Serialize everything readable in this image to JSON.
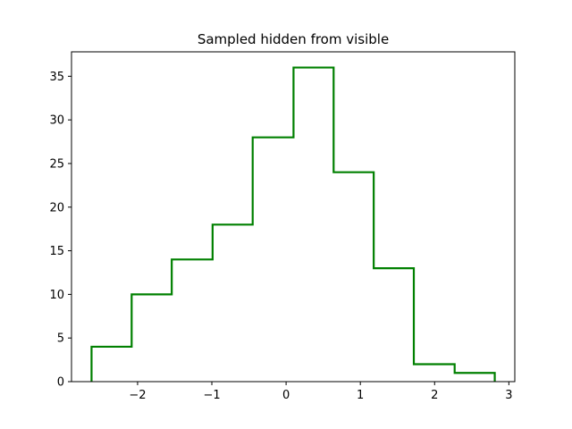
{
  "chart_data": {
    "type": "bar",
    "histtype": "step",
    "title": "Sampled hidden from visible",
    "xlabel": "",
    "ylabel": "",
    "bin_edges": [
      -2.62,
      -2.08,
      -1.54,
      -0.99,
      -0.45,
      0.1,
      0.64,
      1.18,
      1.72,
      2.27,
      2.81
    ],
    "counts": [
      4,
      10,
      14,
      18,
      28,
      36,
      24,
      13,
      2,
      1
    ],
    "xlim": [
      -2.89,
      3.08
    ],
    "ylim": [
      0,
      37.8
    ],
    "xticks": [
      -2,
      -1,
      0,
      1,
      2,
      3
    ],
    "xtick_labels": [
      "−2",
      "−1",
      "0",
      "1",
      "2",
      "3"
    ],
    "yticks": [
      0,
      5,
      10,
      15,
      20,
      25,
      30,
      35
    ],
    "ytick_labels": [
      "0",
      "5",
      "10",
      "15",
      "20",
      "25",
      "30",
      "35"
    ],
    "grid": false,
    "color": "#008000"
  }
}
